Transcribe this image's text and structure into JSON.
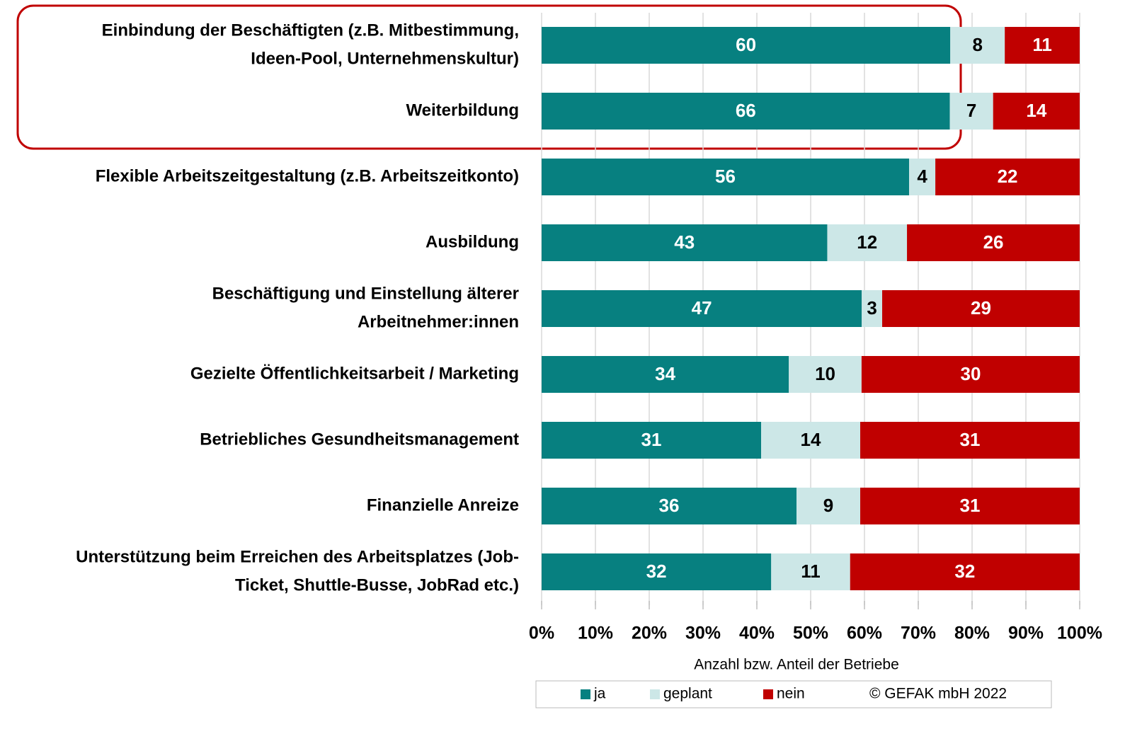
{
  "chart_data": {
    "type": "bar",
    "orientation": "horizontal",
    "stacked": "percent",
    "categories": [
      [
        "Einbindung der Beschäftigten (z.B. Mitbestimmung,",
        "Ideen-Pool, Unternehmenskultur)"
      ],
      [
        "Weiterbildung"
      ],
      [
        "Flexible Arbeitszeitgestaltung (z.B. Arbeitszeitkonto)"
      ],
      [
        "Ausbildung"
      ],
      [
        "Beschäftigung und Einstellung älterer",
        "Arbeitnehmer:innen"
      ],
      [
        "Gezielte Öffentlichkeitsarbeit / Marketing"
      ],
      [
        "Betriebliches Gesundheitsmanagement"
      ],
      [
        "Finanzielle Anreize"
      ],
      [
        "Unterstützung beim Erreichen des Arbeitsplatzes (Job-",
        "Ticket, Shuttle-Busse, JobRad etc.)"
      ]
    ],
    "series": [
      {
        "name": "ja",
        "color": "#078080",
        "label_color": "#ffffff",
        "values": [
          60,
          66,
          56,
          43,
          47,
          34,
          31,
          36,
          32
        ]
      },
      {
        "name": "geplant",
        "color": "#cce7e7",
        "label_color": "#000000",
        "values": [
          8,
          7,
          4,
          12,
          3,
          10,
          14,
          9,
          11
        ]
      },
      {
        "name": "nein",
        "color": "#c00000",
        "label_color": "#ffffff",
        "values": [
          11,
          14,
          22,
          26,
          29,
          30,
          31,
          31,
          32
        ]
      }
    ],
    "xlim": [
      0,
      100
    ],
    "xticks": [
      {
        "value": 0,
        "label": "0%"
      },
      {
        "value": 10,
        "label": "10%"
      },
      {
        "value": 20,
        "label": "20%"
      },
      {
        "value": 30,
        "label": "30%"
      },
      {
        "value": 40,
        "label": "40%"
      },
      {
        "value": 50,
        "label": "50%"
      },
      {
        "value": 60,
        "label": "60%"
      },
      {
        "value": 70,
        "label": "70%"
      },
      {
        "value": 80,
        "label": "80%"
      },
      {
        "value": 90,
        "label": "90%"
      },
      {
        "value": 100,
        "label": "100%"
      }
    ],
    "xlabel": "Anzahl bzw. Anteil der Betriebe",
    "grid": true,
    "legend": "bottom",
    "copyright": "© GEFAK mbH 2022"
  }
}
